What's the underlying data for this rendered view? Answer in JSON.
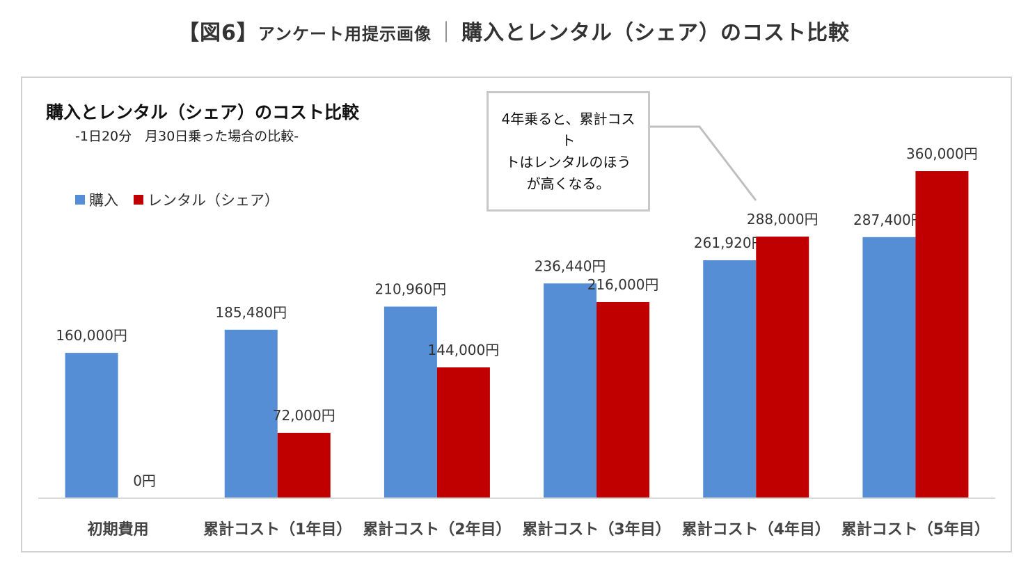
{
  "page": {
    "title_bracket": "【図6】",
    "title_small": "アンケート用提示画像",
    "title_separator": "｜",
    "title_main": "購入とレンタル（シェア）のコスト比較"
  },
  "callout": {
    "text": "4年乗ると、累計コスト\nトはレンタルのほう\nが高くなる。"
  },
  "colors": {
    "purchase": "#558ed5",
    "rental": "#c00000",
    "axis": "#d9d9d9",
    "leader": "#bfbfbf"
  },
  "chart_data": {
    "type": "bar",
    "title": "購入とレンタル（シェア）のコスト比較",
    "subtitle": "-1日20分　月30日乗った場合の比較-",
    "categories": [
      "初期費用",
      "累計コスト（1年目）",
      "累計コスト（2年目）",
      "累計コスト（3年目）",
      "累計コスト（4年目）",
      "累計コスト（5年目）"
    ],
    "series": [
      {
        "name": "購入",
        "values": [
          160000,
          185480,
          210960,
          236440,
          261920,
          287400
        ],
        "labels": [
          "160,000円",
          "185,480円",
          "210,960円",
          "236,440円",
          "261,920円",
          "287,400円"
        ]
      },
      {
        "name": "レンタル（シェア）",
        "values": [
          0,
          72000,
          144000,
          216000,
          288000,
          360000
        ],
        "labels": [
          "0円",
          "72,000円",
          "144,000円",
          "216,000円",
          "288,000円",
          "360,000円"
        ]
      }
    ],
    "xlabel": "",
    "ylabel": "",
    "ylim": [
      0,
      360000
    ],
    "grid": false,
    "legend": "top-left"
  }
}
